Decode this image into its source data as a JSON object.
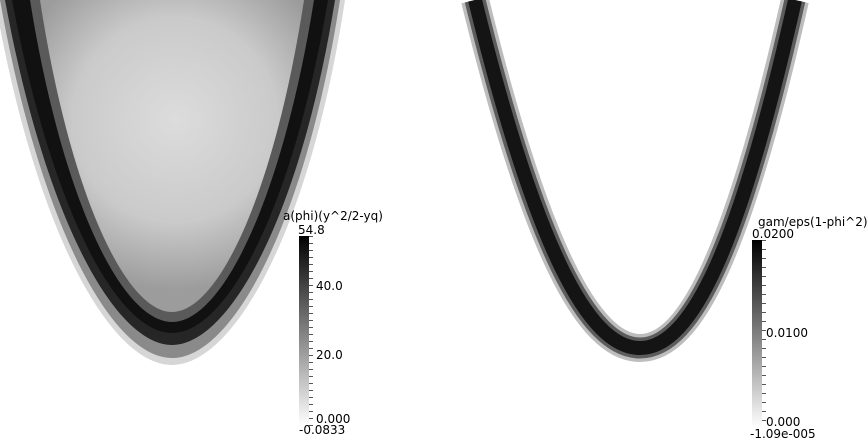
{
  "left_panel": {
    "colorbar_title": "a(phi)(y^2/2-yq)",
    "max_label": "54.8",
    "ticks": [
      "40.0",
      "20.0",
      "0.000"
    ],
    "min_label": "-0.0833"
  },
  "right_panel": {
    "colorbar_title": "gam/eps(1-phi^2)",
    "max_label": "0.0200",
    "ticks": [
      "0.0100",
      "0.000"
    ],
    "min_label": "-1.09e-005"
  }
}
